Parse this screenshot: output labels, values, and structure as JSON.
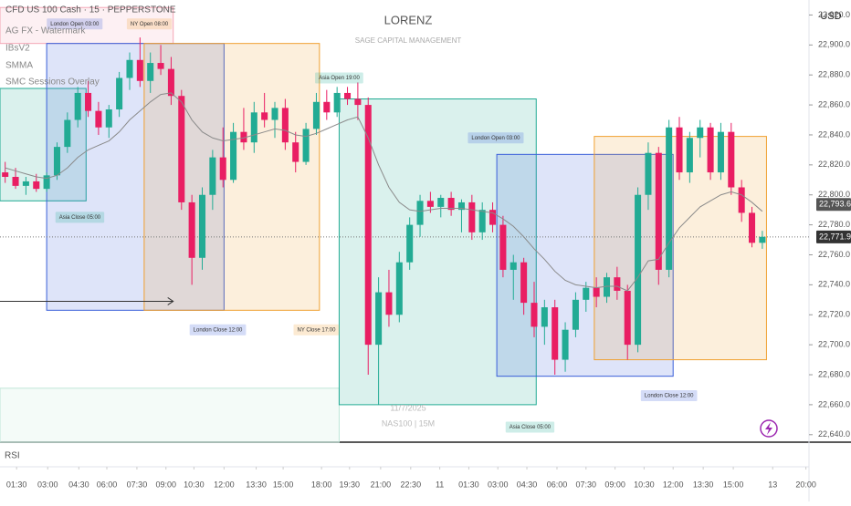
{
  "chart_data": {
    "type": "candlestick",
    "title": "CFD US 100 Cash · 15 · PEPPERSTONE",
    "indicators": [
      "AG FX - Watermark",
      "IBsV2",
      "SMMA",
      "SMC Sessions Overlay"
    ],
    "watermark": {
      "title": "LORENZ",
      "subtitle": "SAGE CAPITAL MANAGEMENT",
      "date": "11/7/2025",
      "symbol": "NAS100 | 15M"
    },
    "currency": "USD",
    "lower_pane": "RSI",
    "up_color": "#22ab94",
    "down_color": "#e91e63",
    "sma_color": "#8a8a8a",
    "xlim": [
      0,
      78
    ],
    "ylim": [
      22635,
      22930
    ],
    "yticks": [
      {
        "value": 22920,
        "label": "22,920.0"
      },
      {
        "value": 22900,
        "label": "22,900.0"
      },
      {
        "value": 22880,
        "label": "22,880.0"
      },
      {
        "value": 22860,
        "label": "22,860.0"
      },
      {
        "value": 22840,
        "label": "22,840.0"
      },
      {
        "value": 22820,
        "label": "22,820.0"
      },
      {
        "value": 22800,
        "label": "22,800.0"
      },
      {
        "value": 22780,
        "label": "22,780.0"
      },
      {
        "value": 22760,
        "label": "22,760.0"
      },
      {
        "value": 22740,
        "label": "22,740.0"
      },
      {
        "value": 22720,
        "label": "22,720.0"
      },
      {
        "value": 22700,
        "label": "22,700.0"
      },
      {
        "value": 22680,
        "label": "22,680.0"
      },
      {
        "value": 22660,
        "label": "22,660.0"
      },
      {
        "value": 22640,
        "label": "22,640.0"
      }
    ],
    "xticks": [
      {
        "value": 1.6,
        "label": "01:30"
      },
      {
        "value": 4.6,
        "label": "03:00"
      },
      {
        "value": 7.6,
        "label": "04:30"
      },
      {
        "value": 10.3,
        "label": "06:00"
      },
      {
        "value": 13.2,
        "label": "07:30"
      },
      {
        "value": 16,
        "label": "09:00"
      },
      {
        "value": 18.7,
        "label": "10:30"
      },
      {
        "value": 21.6,
        "label": "12:00"
      },
      {
        "value": 24.7,
        "label": "13:30"
      },
      {
        "value": 27.3,
        "label": "15:00"
      },
      {
        "value": 31,
        "label": "18:00"
      },
      {
        "value": 33.7,
        "label": "19:30"
      },
      {
        "value": 36.7,
        "label": "21:00"
      },
      {
        "value": 39.6,
        "label": "22:30"
      },
      {
        "value": 42.4,
        "label": "11"
      },
      {
        "value": 45.2,
        "label": "01:30"
      },
      {
        "value": 48,
        "label": "03:00"
      },
      {
        "value": 50.8,
        "label": "04:30"
      },
      {
        "value": 53.7,
        "label": "06:00"
      },
      {
        "value": 56.5,
        "label": "07:30"
      },
      {
        "value": 59.3,
        "label": "09:00"
      },
      {
        "value": 62.1,
        "label": "10:30"
      },
      {
        "value": 64.9,
        "label": "12:00"
      },
      {
        "value": 67.8,
        "label": "13:30"
      },
      {
        "value": 70.7,
        "label": "15:00"
      },
      {
        "value": 74.5,
        "label": "13"
      },
      {
        "value": 77.7,
        "label": "20:00"
      }
    ],
    "ohlc": [
      [
        22815,
        22822,
        22808,
        22812
      ],
      [
        22812,
        22818,
        22804,
        22806
      ],
      [
        22806,
        22812,
        22800,
        22809
      ],
      [
        22809,
        22814,
        22802,
        22804
      ],
      [
        22804,
        22815,
        22802,
        22813
      ],
      [
        22813,
        22835,
        22810,
        22832
      ],
      [
        22832,
        22855,
        22828,
        22850
      ],
      [
        22850,
        22872,
        22845,
        22868
      ],
      [
        22868,
        22876,
        22852,
        22856
      ],
      [
        22856,
        22862,
        22840,
        22845
      ],
      [
        22845,
        22860,
        22838,
        22857
      ],
      [
        22857,
        22882,
        22852,
        22878
      ],
      [
        22878,
        22895,
        22870,
        22890
      ],
      [
        22890,
        22905,
        22872,
        22876
      ],
      [
        22876,
        22895,
        22868,
        22888
      ],
      [
        22888,
        22900,
        22880,
        22884
      ],
      [
        22884,
        22892,
        22860,
        22866
      ],
      [
        22866,
        22870,
        22790,
        22795
      ],
      [
        22795,
        22800,
        22740,
        22758
      ],
      [
        22758,
        22805,
        22750,
        22800
      ],
      [
        22800,
        22830,
        22790,
        22825
      ],
      [
        22825,
        22845,
        22805,
        22810
      ],
      [
        22810,
        22848,
        22808,
        22842
      ],
      [
        22842,
        22858,
        22830,
        22835
      ],
      [
        22835,
        22862,
        22828,
        22855
      ],
      [
        22855,
        22868,
        22845,
        22850
      ],
      [
        22850,
        22862,
        22838,
        22858
      ],
      [
        22858,
        22864,
        22830,
        22835
      ],
      [
        22835,
        22842,
        22815,
        22822
      ],
      [
        22822,
        22848,
        22820,
        22844
      ],
      [
        22844,
        22868,
        22840,
        22862
      ],
      [
        22862,
        22870,
        22850,
        22855
      ],
      [
        22855,
        22872,
        22852,
        22868
      ],
      [
        22868,
        22872,
        22860,
        22864
      ],
      [
        22864,
        22875,
        22850,
        22860
      ],
      [
        22860,
        22865,
        22680,
        22700
      ],
      [
        22700,
        22745,
        22660,
        22735
      ],
      [
        22735,
        22750,
        22712,
        22720
      ],
      [
        22720,
        22762,
        22715,
        22755
      ],
      [
        22755,
        22785,
        22750,
        22780
      ],
      [
        22780,
        22800,
        22772,
        22796
      ],
      [
        22796,
        22802,
        22788,
        22792
      ],
      [
        22792,
        22800,
        22785,
        22798
      ],
      [
        22798,
        22802,
        22786,
        22790
      ],
      [
        22790,
        22797,
        22775,
        22795
      ],
      [
        22795,
        22800,
        22770,
        22775
      ],
      [
        22775,
        22795,
        22770,
        22790
      ],
      [
        22790,
        22795,
        22775,
        22780
      ],
      [
        22780,
        22786,
        22745,
        22750
      ],
      [
        22750,
        22760,
        22730,
        22755
      ],
      [
        22755,
        22758,
        22720,
        22728
      ],
      [
        22728,
        22742,
        22705,
        22712
      ],
      [
        22712,
        22730,
        22700,
        22725
      ],
      [
        22725,
        22730,
        22680,
        22690
      ],
      [
        22690,
        22715,
        22682,
        22710
      ],
      [
        22710,
        22735,
        22705,
        22730
      ],
      [
        22730,
        22742,
        22722,
        22738
      ],
      [
        22738,
        22745,
        22725,
        22732
      ],
      [
        22732,
        22748,
        22728,
        22745
      ],
      [
        22745,
        22752,
        22730,
        22736
      ],
      [
        22736,
        22740,
        22690,
        22700
      ],
      [
        22700,
        22805,
        22695,
        22800
      ],
      [
        22800,
        22835,
        22790,
        22828
      ],
      [
        22828,
        22832,
        22740,
        22750
      ],
      [
        22750,
        22850,
        22745,
        22845
      ],
      [
        22845,
        22852,
        22810,
        22815
      ],
      [
        22815,
        22842,
        22808,
        22838
      ],
      [
        22838,
        22850,
        22825,
        22845
      ],
      [
        22845,
        22848,
        22810,
        22815
      ],
      [
        22815,
        22848,
        22810,
        22842
      ],
      [
        22842,
        22848,
        22800,
        22805
      ],
      [
        22805,
        22810,
        22782,
        22788
      ],
      [
        22788,
        22792,
        22765,
        22768
      ],
      [
        22768,
        22776,
        22764,
        22772
      ]
    ],
    "sma": [
      22818,
      22816,
      22814,
      22812,
      22811,
      22813,
      22818,
      22825,
      22830,
      22833,
      22836,
      22842,
      22850,
      22856,
      22862,
      22867,
      22868,
      22862,
      22850,
      22842,
      22838,
      22836,
      22837,
      22838,
      22840,
      22842,
      22844,
      22843,
      22840,
      22839,
      22841,
      22844,
      22847,
      22850,
      22852,
      22838,
      22820,
      22805,
      22795,
      22790,
      22789,
      22790,
      22791,
      22791,
      22791,
      22790,
      22789,
      22788,
      22784,
      22779,
      22772,
      22764,
      22757,
      22749,
      22743,
      22740,
      22739,
      22738,
      22739,
      22739,
      22736,
      22745,
      22756,
      22757,
      22768,
      22778,
      22785,
      22792,
      22796,
      22800,
      22802,
      22800,
      22795,
      22789
    ],
    "sessions": [
      {
        "x": [
          0,
          16.7
        ],
        "y": [
          22901,
          22925
        ],
        "color": "#f4a6b6"
      },
      {
        "x": [
          0,
          32.7
        ],
        "y": [
          22635,
          22671
        ],
        "color": "#bfe6d8"
      },
      {
        "x": [
          0,
          8.3
        ],
        "y": [
          22796,
          22871
        ],
        "color": "#22ab94"
      },
      {
        "x": [
          4.5,
          21.6
        ],
        "y": [
          22723,
          22901
        ],
        "color": "#3a5fd9"
      },
      {
        "x": [
          13.9,
          30.8
        ],
        "y": [
          22723,
          22901
        ],
        "color": "#f0a030"
      },
      {
        "x": [
          32.7,
          51.7
        ],
        "y": [
          22660,
          22864
        ],
        "color": "#22ab94"
      },
      {
        "x": [
          47.9,
          64.9
        ],
        "y": [
          22679,
          22827
        ],
        "color": "#3a5fd9"
      },
      {
        "x": [
          57.3,
          73.9
        ],
        "y": [
          22690,
          22839
        ],
        "color": "#f0a030"
      }
    ],
    "annotations": [
      {
        "text": "London Open 03:00",
        "x": 7.2,
        "y": 22914,
        "color": "#3a5fd9"
      },
      {
        "text": "NY Open 08:00",
        "x": 14.4,
        "y": 22914,
        "color": "#f0a030"
      },
      {
        "text": "Asia Close 05:00",
        "x": 7.7,
        "y": 22785,
        "color": "#22ab94"
      },
      {
        "text": "Asia Open 19:00",
        "x": 32.7,
        "y": 22878,
        "color": "#22ab94"
      },
      {
        "text": "London Close 12:00",
        "x": 21,
        "y": 22710,
        "color": "#3a5fd9"
      },
      {
        "text": "NY Close 17:00",
        "x": 30.5,
        "y": 22710,
        "color": "#f0a030"
      },
      {
        "text": "London Open 03:00",
        "x": 47.8,
        "y": 22838,
        "color": "#3a5fd9"
      },
      {
        "text": "Asia Close 05:00",
        "x": 51.1,
        "y": 22645,
        "color": "#22ab94"
      },
      {
        "text": "London Close 12:00",
        "x": 64.5,
        "y": 22666,
        "color": "#3a5fd9"
      }
    ],
    "arrow": {
      "x": [
        0,
        16.7
      ],
      "y": 22729
    },
    "price_labels": [
      {
        "value": 22793.6,
        "label": "22,793.6"
      },
      {
        "value": 22771.9,
        "label": "22,771.9"
      }
    ]
  }
}
